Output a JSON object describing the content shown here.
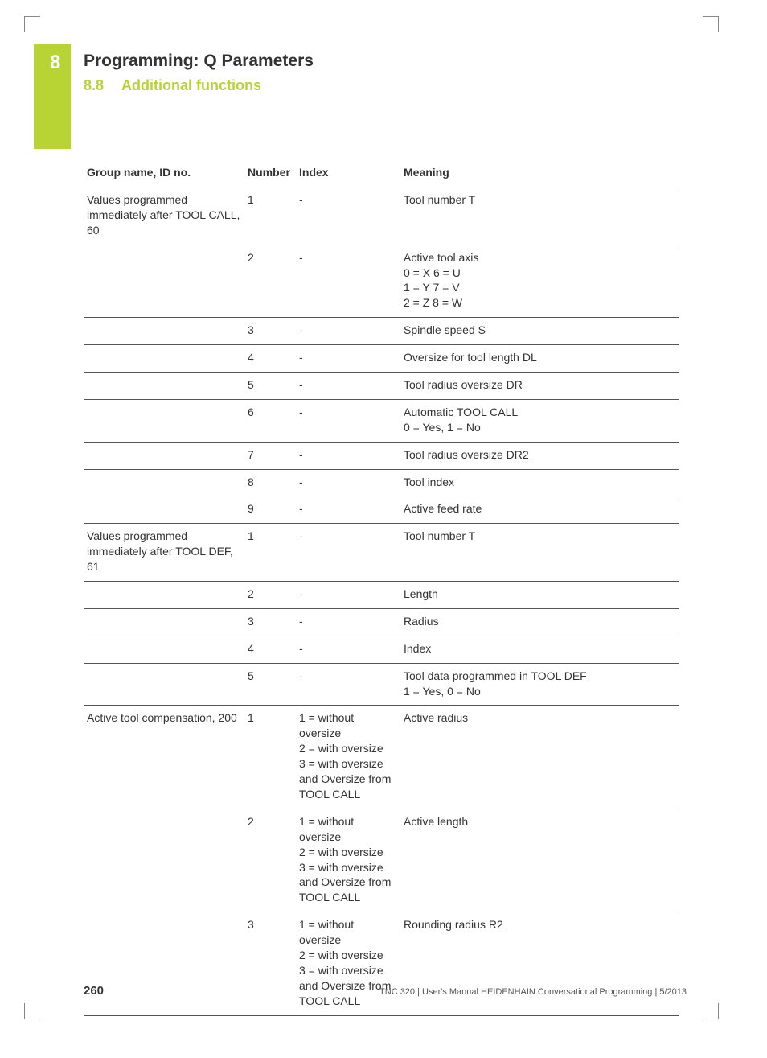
{
  "accent_color": "#b7d334",
  "tab": {
    "number": "8"
  },
  "chapter_title": "Programming: Q Parameters",
  "section": {
    "number": "8.8",
    "title": "Additional functions"
  },
  "table": {
    "columns": [
      "Group name, ID no.",
      "Number",
      "Index",
      "Meaning"
    ],
    "rows": [
      {
        "group": "Values programmed immediately after TOOL CALL, 60",
        "number": "1",
        "index": "-",
        "meaning": "Tool number T"
      },
      {
        "group": "",
        "number": "2",
        "index": "-",
        "meaning": "Active tool axis\n0 = X 6 = U\n1 = Y 7 = V\n2 = Z 8 = W"
      },
      {
        "group": "",
        "number": "3",
        "index": "-",
        "meaning": "Spindle speed S"
      },
      {
        "group": "",
        "number": "4",
        "index": "-",
        "meaning": "Oversize for tool length DL"
      },
      {
        "group": "",
        "number": "5",
        "index": "-",
        "meaning": "Tool radius oversize DR"
      },
      {
        "group": "",
        "number": "6",
        "index": "-",
        "meaning": "Automatic TOOL CALL\n0 = Yes, 1 = No"
      },
      {
        "group": "",
        "number": "7",
        "index": "-",
        "meaning": "Tool radius oversize DR2"
      },
      {
        "group": "",
        "number": "8",
        "index": "-",
        "meaning": "Tool index"
      },
      {
        "group": "",
        "number": "9",
        "index": "-",
        "meaning": "Active feed rate"
      },
      {
        "group": "Values programmed immediately after TOOL DEF, 61",
        "number": "1",
        "index": "-",
        "meaning": "Tool number T"
      },
      {
        "group": "",
        "number": "2",
        "index": "-",
        "meaning": "Length"
      },
      {
        "group": "",
        "number": "3",
        "index": "-",
        "meaning": "Radius"
      },
      {
        "group": "",
        "number": "4",
        "index": "-",
        "meaning": "Index"
      },
      {
        "group": "",
        "number": "5",
        "index": "-",
        "meaning": "Tool data programmed in TOOL DEF\n1 = Yes, 0 = No"
      },
      {
        "group": "Active tool compensation, 200",
        "number": "1",
        "index": "1 = without oversize\n2 = with oversize\n3 = with oversize and Oversize from TOOL CALL",
        "meaning": "Active radius"
      },
      {
        "group": "",
        "number": "2",
        "index": "1 = without oversize\n2 = with oversize\n3 = with oversize and Oversize from TOOL CALL",
        "meaning": "Active length"
      },
      {
        "group": "",
        "number": "3",
        "index": "1 = without oversize\n2 = with oversize\n3 = with oversize and Oversize from TOOL CALL",
        "meaning": "Rounding radius R2"
      }
    ]
  },
  "footer": {
    "page_number": "260",
    "doc_info": "TNC 320 | User's Manual HEIDENHAIN Conversational Programming | 5/2013"
  }
}
